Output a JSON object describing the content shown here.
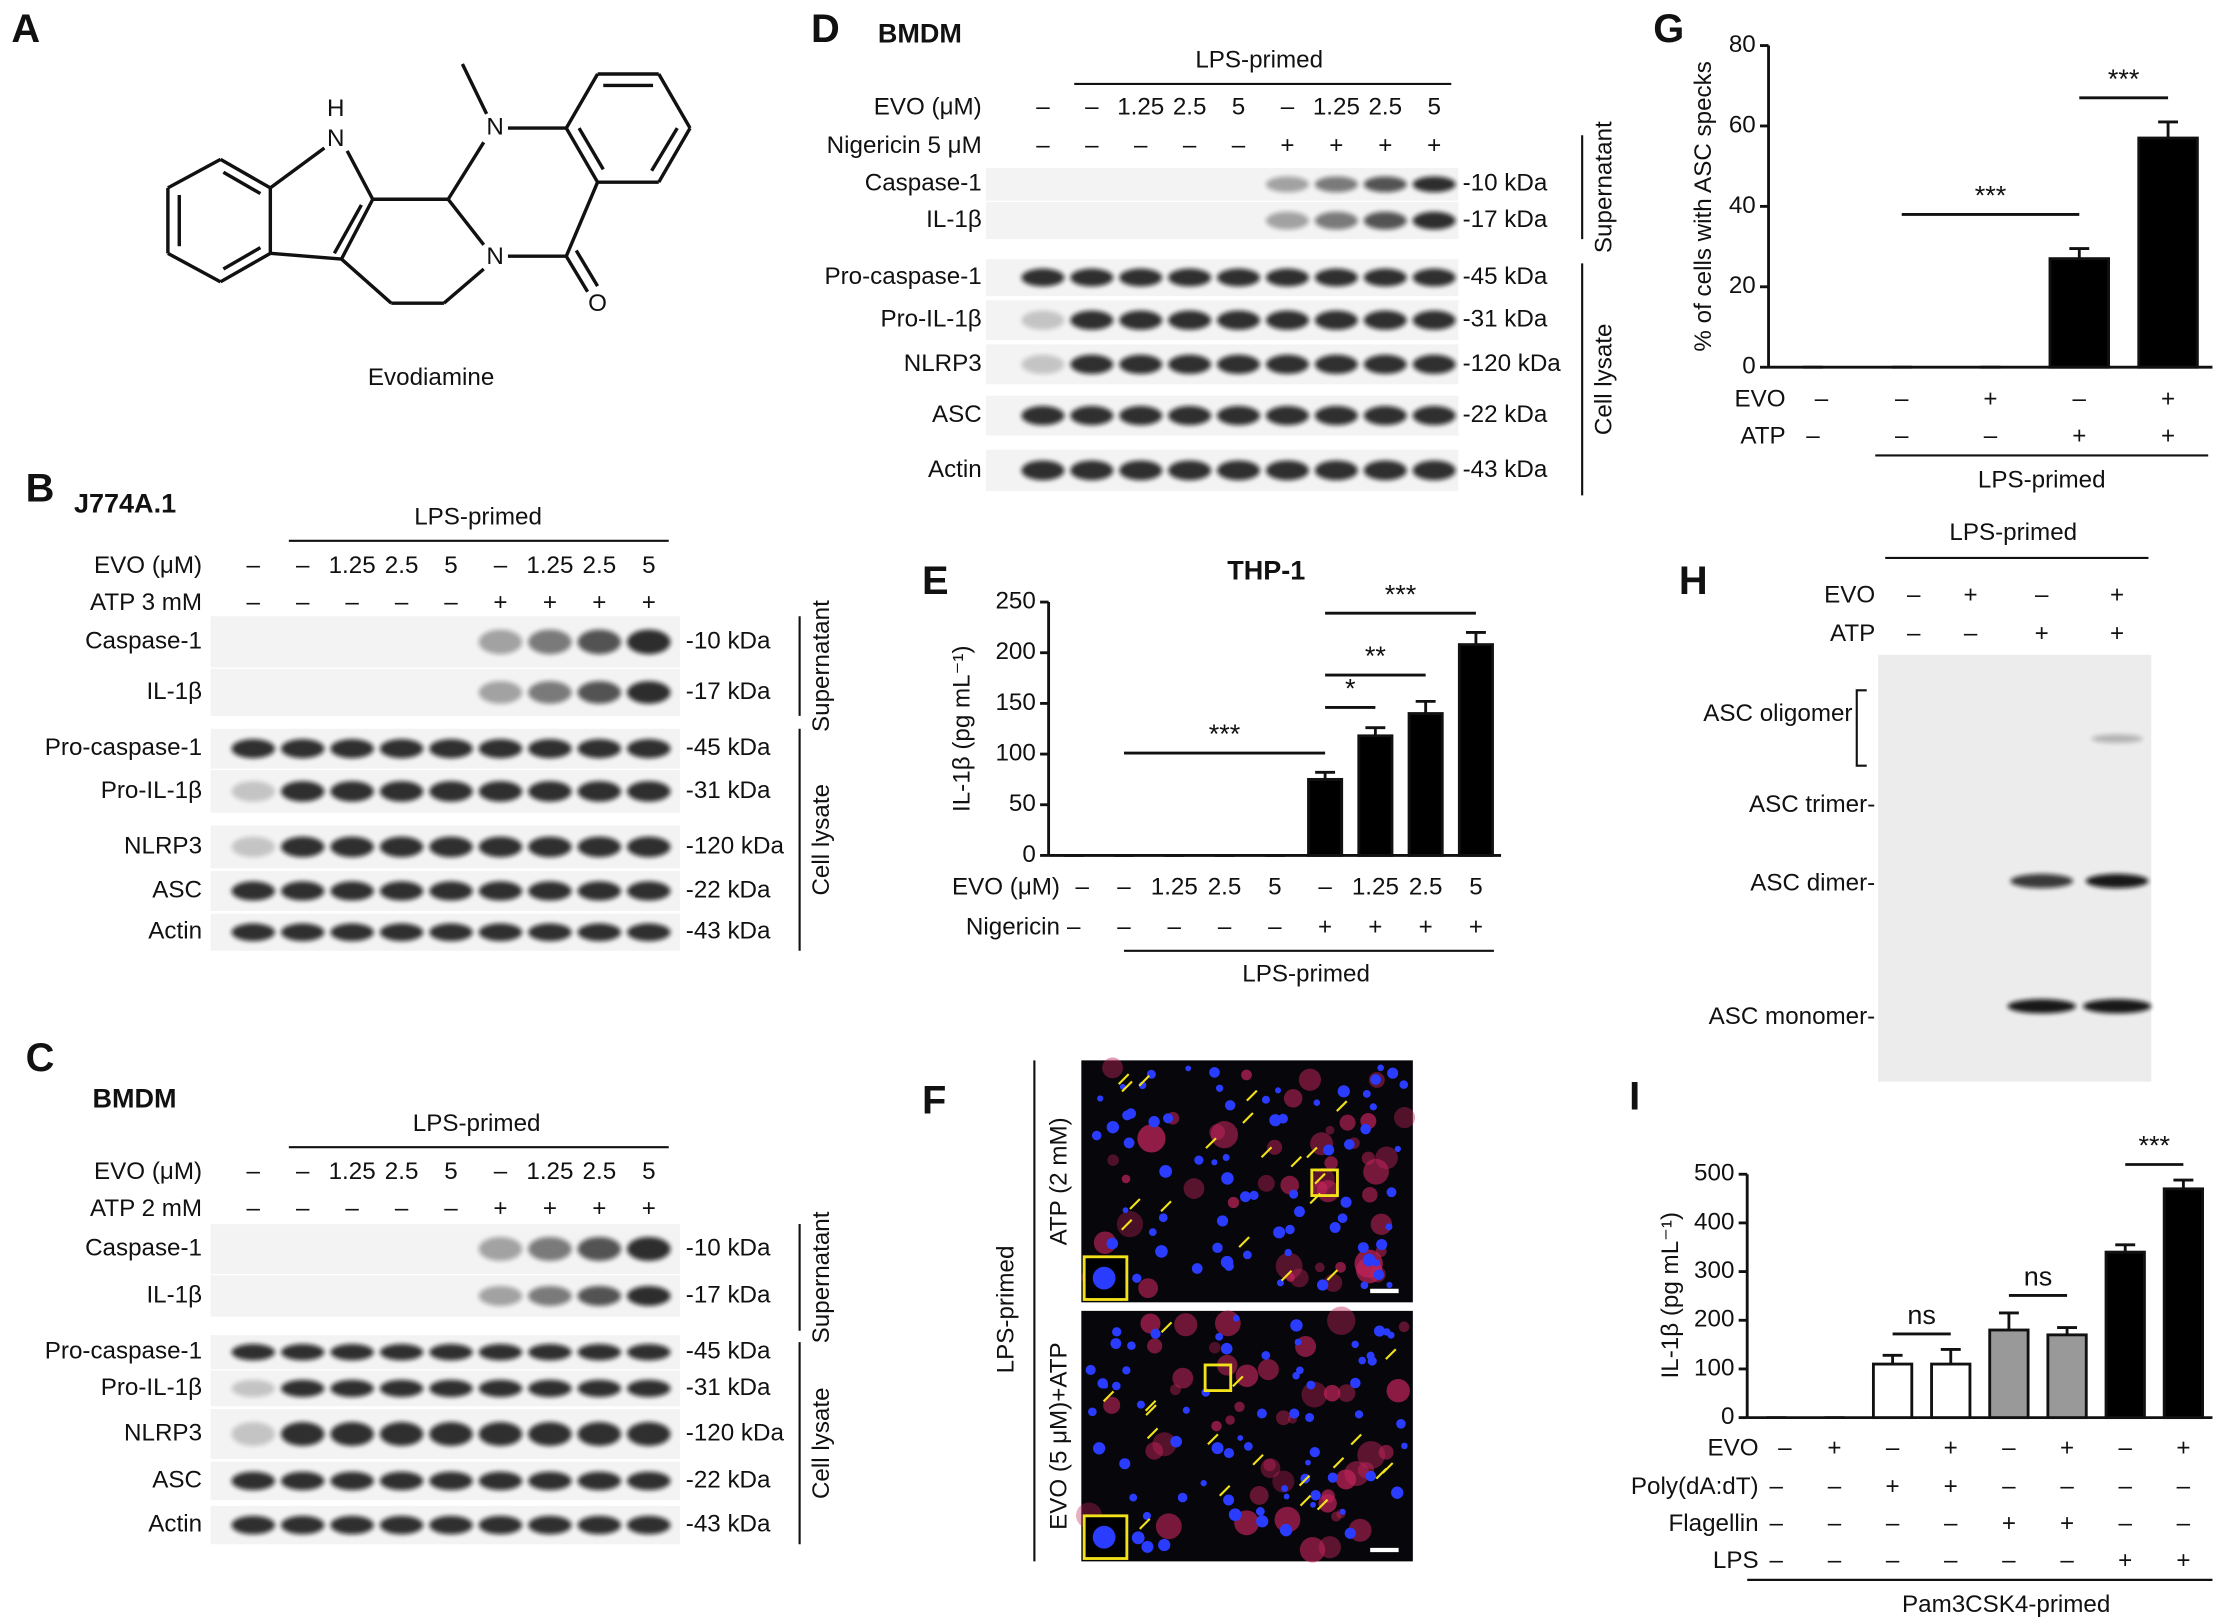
{
  "panel_a": {
    "letter": "A",
    "atoms": [
      "H",
      "N",
      "N",
      "N",
      "O"
    ],
    "caption": "Evodiamine"
  },
  "panel_b": {
    "letter": "B",
    "cell_line": "J774A.1",
    "group_label": "LPS-primed",
    "rows": [
      {
        "name": "EVO (μM)",
        "values": [
          "–",
          "–",
          "1.25",
          "2.5",
          "5",
          "–",
          "1.25",
          "2.5",
          "5"
        ]
      },
      {
        "name": "ATP 3 mM",
        "values": [
          "–",
          "–",
          "–",
          "–",
          "–",
          "+",
          "+",
          "+",
          "+"
        ]
      }
    ],
    "blots": [
      {
        "name": "Caspase-1",
        "size": "-10 kDa"
      },
      {
        "name": "IL-1β",
        "size": "-17 kDa"
      },
      {
        "name": "Pro-caspase-1",
        "size": "-45 kDa"
      },
      {
        "name": "Pro-IL-1β",
        "size": "-31 kDa"
      },
      {
        "name": "NLRP3",
        "size": "-120 kDa"
      },
      {
        "name": "ASC",
        "size": "-22 kDa"
      },
      {
        "name": "Actin",
        "size": "-43 kDa"
      }
    ],
    "sections": [
      "Supernatant",
      "Cell lysate"
    ]
  },
  "panel_c": {
    "letter": "C",
    "cell_line": "BMDM",
    "group_label": "LPS-primed",
    "rows": [
      {
        "name": "EVO (μM)",
        "values": [
          "–",
          "–",
          "1.25",
          "2.5",
          "5",
          "–",
          "1.25",
          "2.5",
          "5"
        ]
      },
      {
        "name": "ATP 2 mM",
        "values": [
          "–",
          "–",
          "–",
          "–",
          "–",
          "+",
          "+",
          "+",
          "+"
        ]
      }
    ],
    "blots": [
      {
        "name": "Caspase-1",
        "size": "-10 kDa"
      },
      {
        "name": "IL-1β",
        "size": "-17 kDa"
      },
      {
        "name": "Pro-caspase-1",
        "size": "-45 kDa"
      },
      {
        "name": "Pro-IL-1β",
        "size": "-31 kDa"
      },
      {
        "name": "NLRP3",
        "size": "-120 kDa"
      },
      {
        "name": "ASC",
        "size": "-22 kDa"
      },
      {
        "name": "Actin",
        "size": "-43 kDa"
      }
    ],
    "sections": [
      "Supernatant",
      "Cell lysate"
    ]
  },
  "panel_d": {
    "letter": "D",
    "cell_line": "BMDM",
    "group_label": "LPS-primed",
    "rows": [
      {
        "name": "EVO (μM)",
        "values": [
          "–",
          "–",
          "1.25",
          "2.5",
          "5",
          "–",
          "1.25",
          "2.5",
          "5"
        ]
      },
      {
        "name": "Nigericin 5 μM",
        "values": [
          "–",
          "–",
          "–",
          "–",
          "–",
          "+",
          "+",
          "+",
          "+"
        ]
      }
    ],
    "blots": [
      {
        "name": "Caspase-1",
        "size": "-10 kDa"
      },
      {
        "name": "IL-1β",
        "size": "-17 kDa"
      },
      {
        "name": "Pro-caspase-1",
        "size": "-45 kDa"
      },
      {
        "name": "Pro-IL-1β",
        "size": "-31 kDa"
      },
      {
        "name": "NLRP3",
        "size": "-120 kDa"
      },
      {
        "name": "ASC",
        "size": "-22 kDa"
      },
      {
        "name": "Actin",
        "size": "-43 kDa"
      }
    ],
    "sections": [
      "Supernatant",
      "Cell lysate"
    ]
  },
  "panel_f": {
    "letter": "F",
    "group_label": "LPS-primed",
    "images": [
      "ATP (2 mM)",
      "EVO (5 μM)+ATP"
    ]
  },
  "panel_h": {
    "letter": "H",
    "group_label": "LPS-primed",
    "rows": [
      {
        "name": "EVO",
        "values": [
          "–",
          "+",
          "–",
          "+"
        ]
      },
      {
        "name": "ATP",
        "values": [
          "–",
          "–",
          "+",
          "+"
        ]
      }
    ],
    "bands": [
      "ASC oligomer",
      "ASC trimer-",
      "ASC dimer-",
      "ASC monomer-"
    ]
  },
  "chart_data": [
    {
      "type": "bar",
      "letter": "E",
      "title": "THP-1",
      "y_label": "IL-1β (pg mL⁻¹)",
      "values": [
        0,
        0,
        0,
        0,
        0,
        75,
        118,
        140,
        208
      ],
      "errors": [
        0,
        0,
        0,
        0,
        0,
        7,
        8,
        12,
        12
      ],
      "color": "#000000",
      "ylim": [
        0,
        250
      ],
      "yticks": [
        0,
        50,
        100,
        150,
        200,
        250
      ],
      "rows": [
        {
          "name": "EVO (μM)",
          "values": [
            "–",
            "–",
            "1.25",
            "2.5",
            "5",
            "–",
            "1.25",
            "2.5",
            "5"
          ]
        },
        {
          "name": "Nigericin",
          "values": [
            "–",
            "–",
            "–",
            "–",
            "–",
            "+",
            "+",
            "+",
            "+"
          ]
        }
      ],
      "group_label": "LPS-primed",
      "annotations": [
        {
          "label": "***",
          "span": [
            1,
            5
          ],
          "y": 101
        },
        {
          "label": "*",
          "span": [
            5,
            6
          ],
          "y": 146
        },
        {
          "label": "**",
          "span": [
            5,
            7
          ],
          "y": 178
        },
        {
          "label": "***",
          "span": [
            5,
            8
          ],
          "y": 239
        }
      ]
    },
    {
      "type": "bar",
      "letter": "G",
      "y_label": "% of cells with ASC specks",
      "values": [
        0,
        0,
        0,
        27,
        57
      ],
      "errors": [
        0,
        0,
        0,
        2.5,
        4
      ],
      "color": "#000000",
      "ylim": [
        0,
        80
      ],
      "yticks": [
        0,
        20,
        40,
        60,
        80
      ],
      "rows": [
        {
          "name": "EVO",
          "values": [
            "–",
            "–",
            "+",
            "–",
            "+"
          ]
        },
        {
          "name": "ATP",
          "values": [
            "–",
            "–",
            "–",
            "+",
            "+"
          ]
        }
      ],
      "group_label": "LPS-primed",
      "annotations": [
        {
          "label": "***",
          "span": [
            1,
            3
          ],
          "y": 38
        },
        {
          "label": "***",
          "span": [
            3,
            4
          ],
          "y": 67
        }
      ]
    },
    {
      "type": "bar",
      "letter": "I",
      "y_label": "IL-1β (pg mL⁻¹)",
      "values": [
        0,
        0,
        110,
        110,
        180,
        170,
        340,
        470
      ],
      "errors": [
        0,
        0,
        18,
        30,
        35,
        15,
        15,
        18
      ],
      "colors": [
        "#ffffff",
        "#ffffff",
        "#ffffff",
        "#ffffff",
        "#999999",
        "#999999",
        "#000000",
        "#000000"
      ],
      "ylim": [
        0,
        500
      ],
      "yticks": [
        0,
        100,
        200,
        300,
        400,
        500
      ],
      "rows": [
        {
          "name": "EVO",
          "values": [
            "–",
            "+",
            "–",
            "+",
            "–",
            "+",
            "–",
            "+"
          ]
        },
        {
          "name": "Poly(dA:dT)",
          "values": [
            "–",
            "–",
            "+",
            "+",
            "–",
            "–",
            "–",
            "–"
          ]
        },
        {
          "name": "Flagellin",
          "values": [
            "–",
            "–",
            "–",
            "–",
            "+",
            "+",
            "–",
            "–"
          ]
        },
        {
          "name": "LPS",
          "values": [
            "–",
            "–",
            "–",
            "–",
            "–",
            "–",
            "+",
            "+"
          ]
        }
      ],
      "group_label": "Pam3CSK4-primed",
      "annotations": [
        {
          "label": "ns",
          "span": [
            2,
            3
          ],
          "y": 172
        },
        {
          "label": "ns",
          "span": [
            4,
            5
          ],
          "y": 251
        },
        {
          "label": "***",
          "span": [
            6,
            7
          ],
          "y": 520
        }
      ]
    }
  ]
}
